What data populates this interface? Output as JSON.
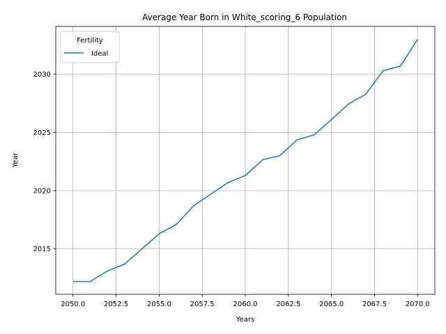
{
  "chart_data": {
    "type": "line",
    "title": "Average Year Born in White_scoring_6 Population",
    "xlabel": "Years",
    "ylabel": "Year",
    "xlim": [
      2049.0,
      2071.0
    ],
    "ylim": [
      2011.1,
      2034.1
    ],
    "xticks": [
      2050.0,
      2052.5,
      2055.0,
      2057.5,
      2060.0,
      2062.5,
      2065.0,
      2067.5,
      2070.0
    ],
    "xtick_labels": [
      "2050.0",
      "2052.5",
      "2055.0",
      "2057.5",
      "2060.0",
      "2062.5",
      "2065.0",
      "2067.5",
      "2070.0"
    ],
    "yticks": [
      2015,
      2020,
      2025,
      2030
    ],
    "ytick_labels": [
      "2015",
      "2020",
      "2025",
      "2030"
    ],
    "grid": true,
    "legend": {
      "title": "Fertility",
      "placement": "upper-left"
    },
    "series": [
      {
        "name": "Ideal",
        "color": "#1f77b4",
        "x": [
          2050,
          2051,
          2052,
          2053,
          2054,
          2055,
          2056,
          2057,
          2058,
          2059,
          2060,
          2061,
          2062,
          2063,
          2064,
          2065,
          2066,
          2067,
          2068,
          2069,
          2070
        ],
        "y": [
          2012.2,
          2012.2,
          2013.1,
          2013.7,
          2015.0,
          2016.3,
          2017.1,
          2018.7,
          2019.7,
          2020.7,
          2021.3,
          2022.65,
          2023.0,
          2024.35,
          2024.8,
          2026.1,
          2027.45,
          2028.3,
          2030.3,
          2030.7,
          2033.0
        ]
      }
    ]
  }
}
